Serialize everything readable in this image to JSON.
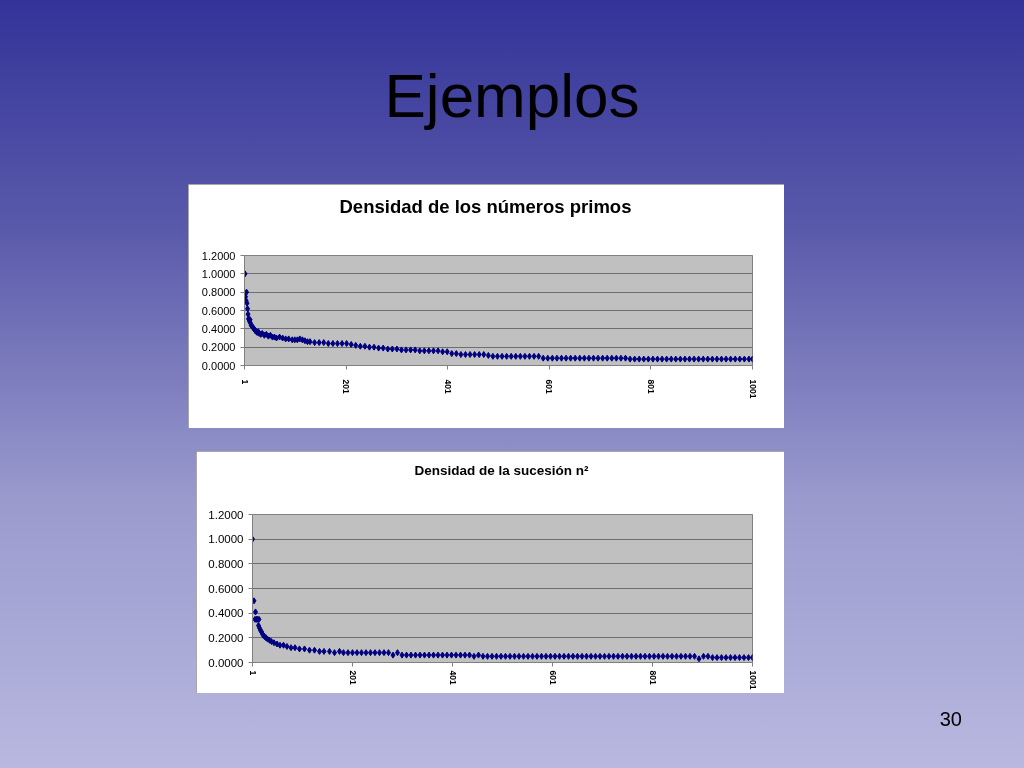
{
  "chart_data": [
    {
      "type": "scatter",
      "title": "Densidad de los números primos",
      "x": [
        1,
        2,
        3,
        4,
        5,
        6,
        7,
        8,
        9,
        10,
        11,
        12,
        13,
        14,
        16,
        18,
        20,
        22,
        24,
        26,
        28,
        30,
        33,
        36,
        40,
        44,
        48,
        52,
        56,
        60,
        64,
        70,
        76,
        82,
        88,
        95,
        100,
        105,
        110,
        115,
        120,
        125,
        130,
        139,
        148,
        157,
        166,
        175,
        184,
        193,
        202,
        211,
        220,
        229,
        238,
        247,
        256,
        265,
        274,
        283,
        292,
        301,
        310,
        319,
        328,
        337,
        346,
        355,
        364,
        373,
        382,
        391,
        400,
        409,
        418,
        427,
        436,
        445,
        454,
        463,
        472,
        481,
        490,
        499,
        508,
        517,
        526,
        535,
        544,
        553,
        562,
        571,
        580,
        589,
        598,
        607,
        616,
        625,
        634,
        643,
        652,
        661,
        670,
        679,
        688,
        697,
        706,
        715,
        724,
        733,
        742,
        751,
        760,
        769,
        778,
        787,
        796,
        805,
        814,
        823,
        832,
        841,
        850,
        859,
        868,
        877,
        886,
        895,
        904,
        913,
        922,
        931,
        940,
        949,
        958,
        967,
        976,
        985,
        994,
        1001
      ],
      "series": [
        {
          "color": "#000080",
          "values": [
            1.0,
            1.0,
            0.75,
            0.71,
            0.8,
            0.68,
            0.62,
            0.56,
            0.51,
            0.5,
            0.48,
            0.5,
            0.46,
            0.44,
            0.43,
            0.41,
            0.4,
            0.38,
            0.37,
            0.36,
            0.37,
            0.35,
            0.34,
            0.35,
            0.33,
            0.34,
            0.32,
            0.33,
            0.31,
            0.31,
            0.3,
            0.31,
            0.3,
            0.29,
            0.29,
            0.28,
            0.28,
            0.28,
            0.29,
            0.28,
            0.27,
            0.26,
            0.26,
            0.25,
            0.25,
            0.25,
            0.24,
            0.24,
            0.24,
            0.24,
            0.24,
            0.23,
            0.22,
            0.21,
            0.21,
            0.2,
            0.2,
            0.19,
            0.19,
            0.18,
            0.18,
            0.18,
            0.17,
            0.17,
            0.17,
            0.17,
            0.16,
            0.16,
            0.16,
            0.16,
            0.16,
            0.15,
            0.15,
            0.13,
            0.13,
            0.12,
            0.12,
            0.12,
            0.12,
            0.12,
            0.12,
            0.11,
            0.1,
            0.1,
            0.1,
            0.1,
            0.1,
            0.1,
            0.1,
            0.1,
            0.1,
            0.1,
            0.1,
            0.08,
            0.08,
            0.08,
            0.08,
            0.08,
            0.08,
            0.08,
            0.08,
            0.08,
            0.08,
            0.08,
            0.08,
            0.08,
            0.08,
            0.08,
            0.08,
            0.08,
            0.08,
            0.08,
            0.07,
            0.07,
            0.07,
            0.07,
            0.07,
            0.07,
            0.07,
            0.07,
            0.07,
            0.07,
            0.07,
            0.07,
            0.07,
            0.07,
            0.07,
            0.07,
            0.07,
            0.07,
            0.07,
            0.07,
            0.07,
            0.07,
            0.07,
            0.07,
            0.07,
            0.07,
            0.07,
            0.07
          ]
        }
      ],
      "xlim": [
        1,
        1001
      ],
      "xticks": [
        1,
        201,
        401,
        601,
        801,
        1001
      ],
      "ylim": [
        0,
        1.2
      ],
      "yticks": [
        {
          "value": 0,
          "label": "0.0000"
        },
        {
          "value": 0.2,
          "label": "0.2000"
        },
        {
          "value": 0.4,
          "label": "0.4000"
        },
        {
          "value": 0.6,
          "label": "0.6000"
        },
        {
          "value": 0.8,
          "label": "0.8000"
        },
        {
          "value": 1.0,
          "label": "1.0000"
        },
        {
          "value": 1.2,
          "label": "1.2000"
        }
      ],
      "grid": "y",
      "marker": "diamond",
      "annotations": [
        "Ejemplos"
      ]
    },
    {
      "type": "scatter",
      "title": "Densidad de la sucesión n²",
      "x": [
        1,
        4,
        6,
        7,
        9,
        11,
        13,
        14,
        15,
        17,
        19,
        21,
        23,
        25,
        28,
        31,
        35,
        39,
        44,
        50,
        56,
        63,
        70,
        78,
        86,
        95,
        105,
        115,
        125,
        135,
        144,
        155,
        165,
        175,
        183,
        192,
        201,
        210,
        219,
        228,
        237,
        246,
        255,
        264,
        273,
        282,
        291,
        300,
        309,
        318,
        327,
        336,
        345,
        354,
        363,
        372,
        381,
        390,
        399,
        408,
        417,
        426,
        435,
        444,
        453,
        462,
        471,
        480,
        489,
        498,
        507,
        516,
        525,
        534,
        543,
        552,
        561,
        570,
        579,
        588,
        597,
        606,
        615,
        624,
        633,
        642,
        651,
        660,
        669,
        678,
        687,
        696,
        705,
        714,
        723,
        732,
        741,
        750,
        759,
        768,
        777,
        786,
        795,
        804,
        813,
        822,
        831,
        840,
        849,
        858,
        867,
        876,
        885,
        894,
        903,
        912,
        921,
        930,
        939,
        948,
        957,
        966,
        975,
        984,
        993,
        1001
      ],
      "series": [
        {
          "color": "#000080",
          "values": [
            1.0,
            0.5,
            0.35,
            0.41,
            0.35,
            0.35,
            0.3,
            0.35,
            0.28,
            0.26,
            0.25,
            0.23,
            0.22,
            0.21,
            0.2,
            0.19,
            0.18,
            0.17,
            0.16,
            0.15,
            0.14,
            0.14,
            0.13,
            0.12,
            0.12,
            0.11,
            0.11,
            0.1,
            0.1,
            0.09,
            0.09,
            0.09,
            0.08,
            0.09,
            0.08,
            0.08,
            0.08,
            0.08,
            0.08,
            0.08,
            0.08,
            0.08,
            0.08,
            0.08,
            0.08,
            0.06,
            0.08,
            0.06,
            0.06,
            0.06,
            0.06,
            0.06,
            0.06,
            0.06,
            0.06,
            0.06,
            0.06,
            0.06,
            0.06,
            0.06,
            0.06,
            0.06,
            0.06,
            0.05,
            0.06,
            0.05,
            0.05,
            0.05,
            0.05,
            0.05,
            0.05,
            0.05,
            0.05,
            0.05,
            0.05,
            0.05,
            0.05,
            0.05,
            0.05,
            0.05,
            0.05,
            0.05,
            0.05,
            0.05,
            0.05,
            0.05,
            0.05,
            0.05,
            0.05,
            0.05,
            0.05,
            0.05,
            0.05,
            0.05,
            0.05,
            0.05,
            0.05,
            0.05,
            0.05,
            0.05,
            0.05,
            0.05,
            0.05,
            0.05,
            0.05,
            0.05,
            0.05,
            0.05,
            0.05,
            0.05,
            0.05,
            0.05,
            0.05,
            0.03,
            0.05,
            0.05,
            0.04,
            0.04,
            0.04,
            0.04,
            0.04,
            0.04,
            0.04,
            0.04,
            0.04,
            0.04
          ]
        }
      ],
      "xlim": [
        1,
        1001
      ],
      "xticks": [
        1,
        201,
        401,
        601,
        801,
        1001
      ],
      "ylim": [
        0,
        1.2
      ],
      "yticks": [
        {
          "value": 0,
          "label": "0.0000"
        },
        {
          "value": 0.2,
          "label": "0.2000"
        },
        {
          "value": 0.4,
          "label": "0.4000"
        },
        {
          "value": 0.6,
          "label": "0.6000"
        },
        {
          "value": 0.8,
          "label": "0.8000"
        },
        {
          "value": 1.0,
          "label": "1.0000"
        },
        {
          "value": 1.2,
          "label": "1.2000"
        }
      ],
      "grid": "y",
      "marker": "diamond",
      "annotations": [
        "30"
      ]
    }
  ]
}
